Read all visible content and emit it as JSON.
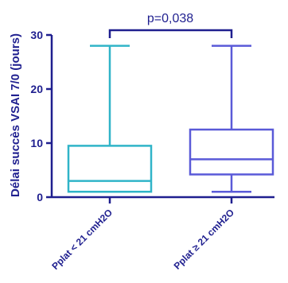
{
  "chart_data": {
    "type": "boxplot",
    "ylabel": "Délai succès VSAI 7/0 (jours)",
    "yticks": [
      0,
      10,
      20,
      30
    ],
    "ylim": [
      0,
      30
    ],
    "categories": [
      "Pplat < 21 cmH2O",
      "Pplat ≥ 21 cmH2O"
    ],
    "boxes": [
      {
        "category": "Pplat < 21 cmH2O",
        "min": 1,
        "q1": 1,
        "median": 3,
        "q3": 9.5,
        "max": 28,
        "color": "#30b4c8"
      },
      {
        "category": "Pplat ≥ 21 cmH2O",
        "min": 1,
        "q1": 4.2,
        "median": 7,
        "q3": 12.5,
        "max": 28,
        "color": "#5a5ad8"
      }
    ],
    "annotation": {
      "text": "p=0,038",
      "from": 0,
      "to": 1
    },
    "axis_color": "#1f1f8f"
  }
}
